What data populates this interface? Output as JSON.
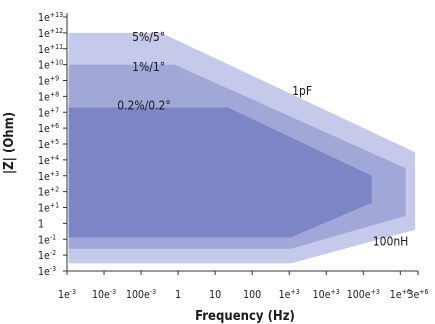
{
  "chart_data": {
    "type": "area",
    "xlabel": "Frequency (Hz)",
    "ylabel": "|Z| (Ohm)",
    "x_scale": "log",
    "y_scale": "log",
    "xlim": [
      0.001,
      3000000
    ],
    "ylim": [
      0.001,
      10000000000000
    ],
    "x_ticks": [
      {
        "label": "1e-3",
        "base": "1e",
        "exp": "-3",
        "value": 0.001
      },
      {
        "label": "10e-3",
        "base": "10e",
        "exp": "-3",
        "value": 0.01
      },
      {
        "label": "100e-3",
        "base": "100e",
        "exp": "-3",
        "value": 0.1
      },
      {
        "label": "1",
        "base": "1",
        "exp": "",
        "value": 1
      },
      {
        "label": "10",
        "base": "10",
        "exp": "",
        "value": 10
      },
      {
        "label": "100",
        "base": "100",
        "exp": "",
        "value": 100
      },
      {
        "label": "1e+3",
        "base": "1e",
        "exp": "+3",
        "value": 1000
      },
      {
        "label": "10e+3",
        "base": "10e",
        "exp": "+3",
        "value": 10000
      },
      {
        "label": "100e+3",
        "base": "100e",
        "exp": "+3",
        "value": 100000
      },
      {
        "label": "1e+6",
        "base": "1e",
        "exp": "+6",
        "value": 1000000
      },
      {
        "label": "3e+6",
        "base": "3e",
        "exp": "+6",
        "value": 3000000
      }
    ],
    "y_ticks": [
      {
        "label": "1e+13",
        "base": "1e",
        "exp": "+13",
        "value": 10000000000000.0
      },
      {
        "label": "1e+12",
        "base": "1e",
        "exp": "+12",
        "value": 1000000000000.0
      },
      {
        "label": "1e+11",
        "base": "1e",
        "exp": "+11",
        "value": 100000000000.0
      },
      {
        "label": "1e+10",
        "base": "1e",
        "exp": "+10",
        "value": 10000000000.0
      },
      {
        "label": "1e+9",
        "base": "1e",
        "exp": "+9",
        "value": 1000000000.0
      },
      {
        "label": "1e+8",
        "base": "1e",
        "exp": "+8",
        "value": 100000000.0
      },
      {
        "label": "1e+7",
        "base": "1e",
        "exp": "+7",
        "value": 10000000.0
      },
      {
        "label": "1e+6",
        "base": "1e",
        "exp": "+6",
        "value": 1000000.0
      },
      {
        "label": "1e+5",
        "base": "1e",
        "exp": "+5",
        "value": 100000.0
      },
      {
        "label": "1e+4",
        "base": "1e",
        "exp": "+4",
        "value": 10000.0
      },
      {
        "label": "1e+3",
        "base": "1e",
        "exp": "+3",
        "value": 1000.0
      },
      {
        "label": "1e+2",
        "base": "1e",
        "exp": "+2",
        "value": 100.0
      },
      {
        "label": "1e+1",
        "base": "1e",
        "exp": "+1",
        "value": 10.0
      },
      {
        "label": "1",
        "base": "1",
        "exp": "",
        "value": 1
      },
      {
        "label": "1e-1",
        "base": "1e",
        "exp": "-1",
        "value": 0.1
      },
      {
        "label": "1e-2",
        "base": "1e",
        "exp": "-2",
        "value": 0.01
      },
      {
        "label": "1e-3",
        "base": "1e",
        "exp": "-3",
        "value": 0.001
      }
    ],
    "series": [
      {
        "name": "5%/5°",
        "color": "#c5c9ea",
        "label_color": "#1a1a1a",
        "label_at": [
          0.16,
          300000000000.0
        ],
        "polygon": [
          [
            0.0011,
            1000000000000.0
          ],
          [
            0.35,
            1000000000000.0
          ],
          [
            2500000,
            30000.0
          ],
          [
            2500000,
            0.4
          ],
          [
            1100,
            0.003
          ],
          [
            0.0011,
            0.003
          ]
        ]
      },
      {
        "name": "1%/1°",
        "color": "#a1a8d8",
        "label_color": "#1a1a1a",
        "label_at": [
          0.16,
          4000000000.0
        ],
        "polygon": [
          [
            0.0011,
            10000000000.0
          ],
          [
            0.8,
            10000000000.0
          ],
          [
            1400000,
            3000.0
          ],
          [
            1400000,
            3
          ],
          [
            1100,
            0.025
          ],
          [
            0.0011,
            0.025
          ]
        ]
      },
      {
        "name": "0.2%/0.2°",
        "color": "#7c86c7",
        "label_color": "#ffffff",
        "label_at": [
          0.12,
          15000000.0
        ],
        "polygon": [
          [
            0.0011,
            20000000.0
          ],
          [
            22,
            20000000.0
          ],
          [
            170000,
            1000.0
          ],
          [
            170000,
            20
          ],
          [
            1100,
            0.13
          ],
          [
            0.0011,
            0.13
          ]
        ]
      }
    ],
    "annotations": [
      {
        "text": "1pF",
        "x": 1200,
        "y": 120000000.0
      },
      {
        "text": "100nH",
        "x": 180000,
        "y": 0.04
      }
    ]
  }
}
